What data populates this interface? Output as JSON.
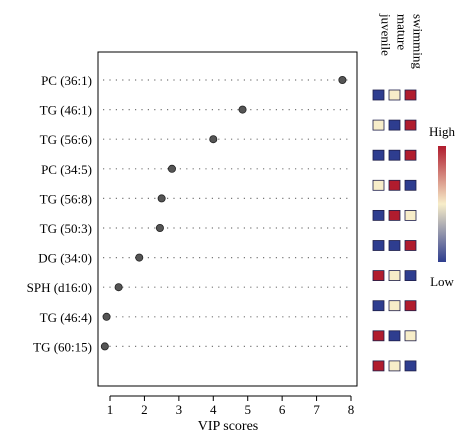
{
  "chart_data": {
    "type": "scatter",
    "xlabel": "VIP scores",
    "ylabel": "",
    "xlim": [
      0.6,
      8.1
    ],
    "xticks": [
      1,
      2,
      3,
      4,
      5,
      6,
      7,
      8
    ],
    "grid": "dotted guide lines per row",
    "categories": [
      "PC (36:1)",
      "TG (46:1)",
      "TG (56:6)",
      "PC (34:5)",
      "TG (56:8)",
      "TG (50:3)",
      "DG (34:0)",
      "SPH (d16:0)",
      "TG (46:4)",
      "TG (60:15)"
    ],
    "values": [
      7.75,
      4.85,
      4.0,
      2.8,
      2.5,
      2.45,
      1.85,
      1.25,
      0.9,
      0.85
    ],
    "heatmap": {
      "columns": [
        "juvenile",
        "mature",
        "swimming"
      ],
      "rows": [
        [
          0,
          0.5,
          1
        ],
        [
          0.5,
          0,
          1
        ],
        [
          0,
          0,
          1
        ],
        [
          0.5,
          1,
          0
        ],
        [
          0,
          1,
          0.5
        ],
        [
          0,
          0,
          1
        ],
        [
          1,
          0.5,
          0
        ],
        [
          0,
          0.5,
          1
        ],
        [
          1,
          0,
          0.5
        ],
        [
          1,
          0.5,
          0
        ]
      ],
      "scale_high_label": "High",
      "scale_low_label": "Low",
      "colors": {
        "low": "#2e3d8f",
        "mid": "#f7edc9",
        "high": "#b01c2e"
      }
    },
    "point_color": "#555555"
  }
}
